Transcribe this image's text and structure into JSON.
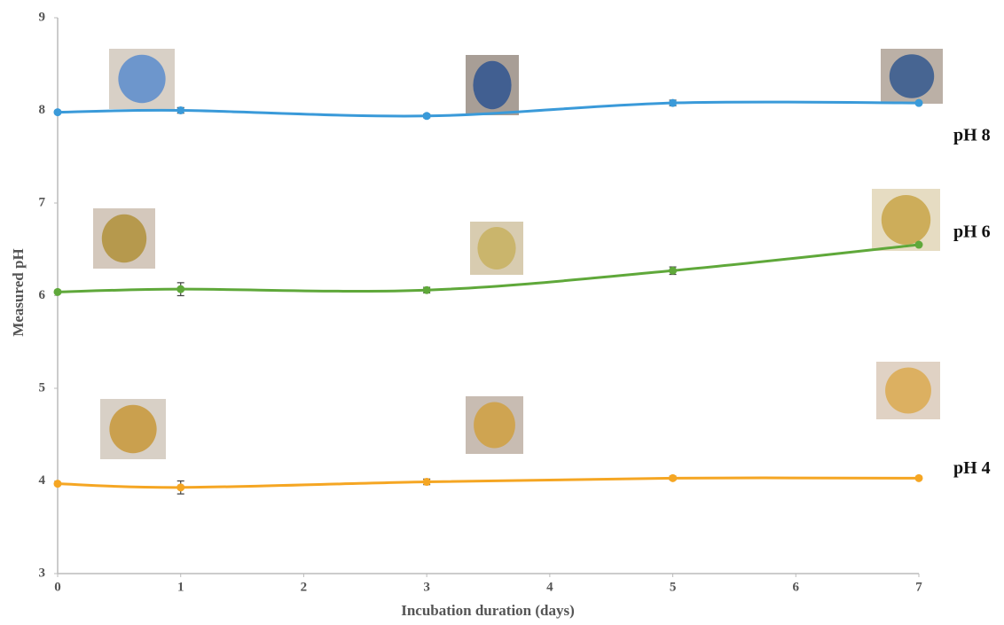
{
  "chart_data": {
    "type": "line",
    "x_label": "Incubation duration (days)",
    "y_label": "Measured pH",
    "x": [
      0,
      1,
      3,
      5,
      7
    ],
    "series": [
      {
        "name": "pH 8",
        "color": "#3a9ad9",
        "values": [
          7.98,
          8.0,
          7.94,
          8.08,
          8.08
        ],
        "errors": [
          0.01,
          0.03,
          0.02,
          0.03,
          0.01
        ]
      },
      {
        "name": "pH 6",
        "color": "#5fa83a",
        "values": [
          6.04,
          6.07,
          6.06,
          6.27,
          6.55
        ],
        "errors": [
          0.01,
          0.07,
          0.03,
          0.04,
          0.01
        ]
      },
      {
        "name": "pH 4",
        "color": "#f5a623",
        "values": [
          3.97,
          3.93,
          3.99,
          4.03,
          4.03
        ],
        "errors": [
          0.01,
          0.07,
          0.03,
          0.02,
          0.01
        ]
      }
    ],
    "xlim": [
      0,
      7
    ],
    "xticks": [
      0,
      1,
      2,
      3,
      4,
      5,
      6,
      7
    ],
    "ylim": [
      3,
      9
    ],
    "yticks": [
      3,
      4,
      5,
      6,
      7,
      8,
      9
    ]
  }
}
